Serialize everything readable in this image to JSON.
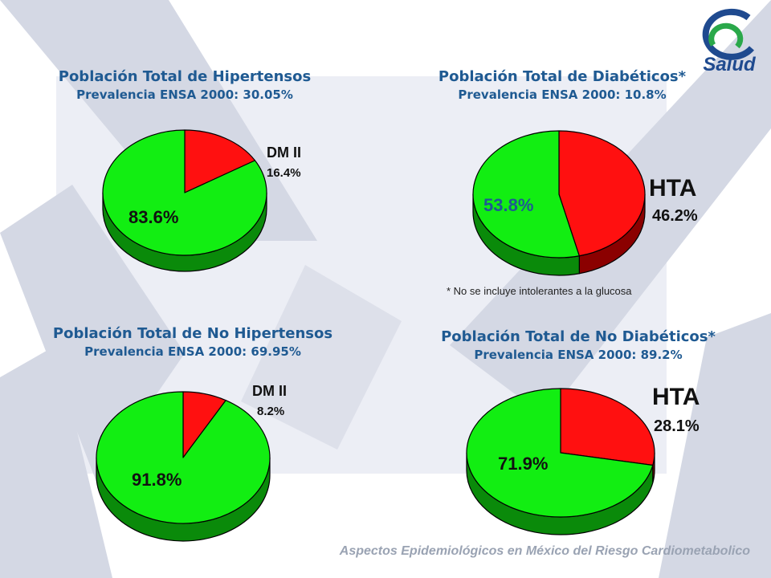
{
  "colors": {
    "green": "#12ee12",
    "green_dark": "#0a8a0a",
    "red": "#ff1010",
    "red_dark": "#8b0000",
    "title": "#1f5a92",
    "logo_blue": "#1f4a8f",
    "logo_green": "#2aa84a"
  },
  "logo": {
    "text": "Salud"
  },
  "footnote": "* No se incluye intolerantes a la glucosa",
  "footer": "Aspectos Epidemiológicos en México del Riesgo Cardiometabolico",
  "chart_data": [
    {
      "type": "pie",
      "title": "Población Total de Hipertensos",
      "subtitle": "Prevalencia ENSA 2000: 30.05%",
      "slices": [
        {
          "name": "DM II",
          "value": 16.4,
          "label": "16.4%",
          "color": "#ff1010"
        },
        {
          "name": "",
          "value": 83.6,
          "label": "83.6%",
          "color": "#12ee12"
        }
      ]
    },
    {
      "type": "pie",
      "title": "Población Total de Diabéticos*",
      "subtitle": "Prevalencia ENSA 2000: 10.8%",
      "slices": [
        {
          "name": "HTA",
          "value": 46.2,
          "label": "46.2%",
          "color": "#ff1010"
        },
        {
          "name": "",
          "value": 53.8,
          "label": "53.8%",
          "color": "#12ee12"
        }
      ]
    },
    {
      "type": "pie",
      "title": "Población Total de No Hipertensos",
      "subtitle": "Prevalencia ENSA 2000: 69.95%",
      "slices": [
        {
          "name": "DM II",
          "value": 8.2,
          "label": "8.2%",
          "color": "#ff1010"
        },
        {
          "name": "",
          "value": 91.8,
          "label": "91.8%",
          "color": "#12ee12"
        }
      ]
    },
    {
      "type": "pie",
      "title": "Población Total de No Diabéticos*",
      "subtitle": "Prevalencia ENSA 2000: 89.2%",
      "slices": [
        {
          "name": "HTA",
          "value": 28.1,
          "label": "28.1%",
          "color": "#ff1010"
        },
        {
          "name": "",
          "value": 71.9,
          "label": "71.9%",
          "color": "#12ee12"
        }
      ]
    }
  ]
}
